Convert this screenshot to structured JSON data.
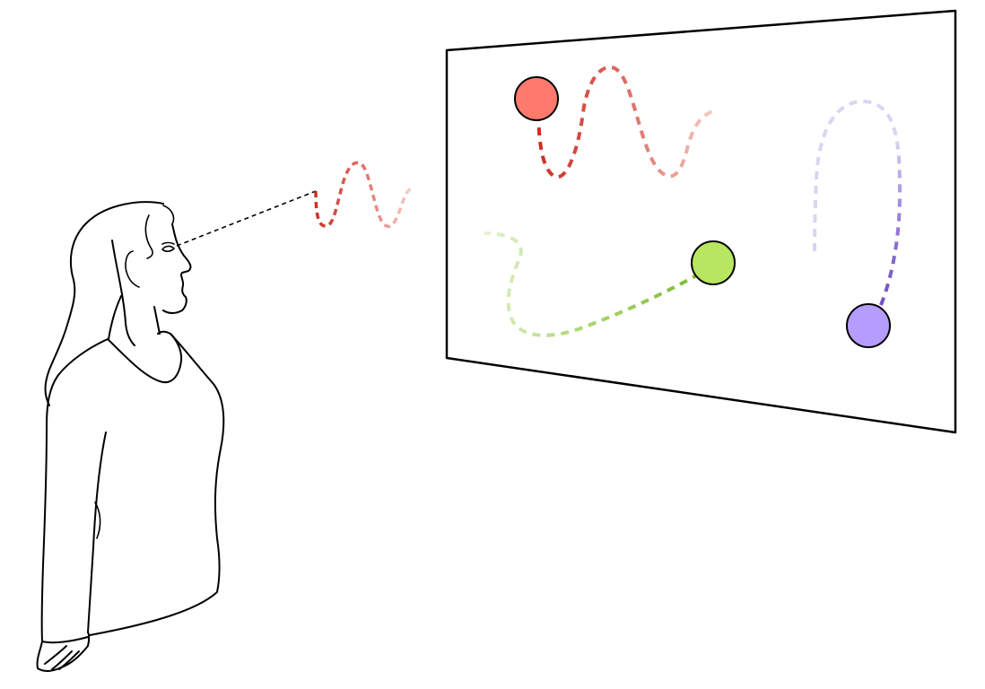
{
  "figure": {
    "kind": "observer viewing a screen with three moving targets",
    "colors": {
      "red": "#ff7a6e",
      "red_trail": "#d0392e",
      "green": "#b8e660",
      "green_trail": "#7fb837",
      "purple": "#b59cff",
      "purple_trail": "#6f4fc7",
      "outline": "#000000"
    },
    "elements": {
      "person": "woman-silhouette-icon",
      "screen": "display-screen",
      "gaze": "gaze-line",
      "targets": [
        "red-target",
        "green-target",
        "purple-target"
      ]
    }
  }
}
